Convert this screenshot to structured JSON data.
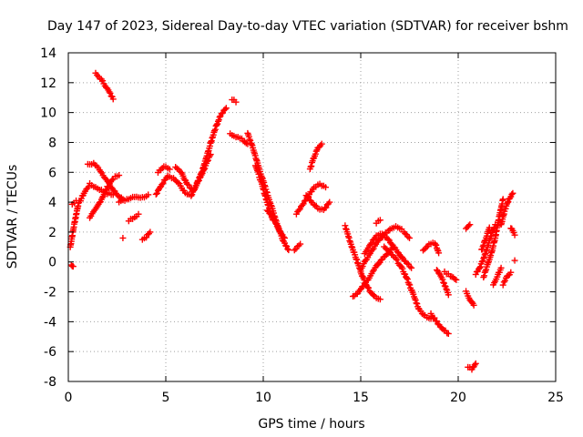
{
  "chart_data": {
    "type": "scatter",
    "title": "Day 147 of 2023, Sidereal Day-to-day VTEC variation (SDTVAR) for receiver bshm",
    "xlabel": "GPS time / hours",
    "ylabel": "SDTVAR / TECUs",
    "xlim": [
      0,
      25
    ],
    "ylim": [
      -8,
      14
    ],
    "xticks": [
      "0",
      "5",
      "10",
      "15",
      "20",
      "25"
    ],
    "yticks": [
      "-8",
      "-6",
      "-4",
      "-2",
      "0",
      "2",
      "4",
      "6",
      "8",
      "10",
      "12",
      "14"
    ],
    "grid": true,
    "marker": "+",
    "color": "#ff0000",
    "series": [
      {
        "name": "SDTVAR",
        "segments": [
          {
            "x": [
              0.1,
              0.3,
              0.5,
              0.8,
              1.1,
              1.4,
              1.7,
              2.0,
              2.3
            ],
            "y": [
              1.0,
              2.5,
              3.8,
              4.6,
              5.2,
              5.0,
              4.8,
              4.6,
              4.5
            ]
          },
          {
            "x": [
              1.0,
              1.3,
              1.6,
              1.9,
              2.2,
              2.5,
              2.8
            ],
            "y": [
              6.5,
              6.6,
              6.2,
              5.6,
              5.0,
              4.5,
              4.2
            ]
          },
          {
            "x": [
              1.1,
              1.4,
              1.7,
              2.0,
              2.3,
              2.6
            ],
            "y": [
              3.0,
              3.5,
              4.2,
              5.0,
              5.6,
              5.8
            ]
          },
          {
            "x": [
              1.4,
              1.7,
              2.0,
              2.3
            ],
            "y": [
              12.6,
              12.2,
              11.6,
              10.9
            ]
          },
          {
            "x": [
              0.2,
              0.4
            ],
            "y": [
              3.9,
              4.1
            ]
          },
          {
            "x": [
              0.15,
              0.25
            ],
            "y": [
              -0.15,
              -0.3
            ]
          },
          {
            "x": [
              2.6,
              3.0,
              3.4,
              3.8,
              4.1
            ],
            "y": [
              4.0,
              4.2,
              4.4,
              4.3,
              4.5
            ]
          },
          {
            "x": [
              3.1,
              3.4,
              3.6
            ],
            "y": [
              2.8,
              3.0,
              3.2
            ]
          },
          {
            "x": [
              2.8
            ],
            "y": [
              1.6
            ]
          },
          {
            "x": [
              3.8,
              4.0,
              4.2
            ],
            "y": [
              1.5,
              1.7,
              2.0
            ]
          },
          {
            "x": [
              4.5,
              4.8,
              5.1,
              5.4,
              5.7,
              6.0,
              6.3,
              6.6,
              6.9,
              7.2,
              7.5,
              7.8,
              8.1
            ],
            "y": [
              4.5,
              5.2,
              5.8,
              5.6,
              5.2,
              4.6,
              4.4,
              5.2,
              6.2,
              7.5,
              8.8,
              9.8,
              10.3
            ]
          },
          {
            "x": [
              4.6,
              4.9,
              5.2
            ],
            "y": [
              6.0,
              6.4,
              6.2
            ]
          },
          {
            "x": [
              5.5,
              5.8,
              6.1,
              6.4,
              6.7,
              7.0,
              7.3
            ],
            "y": [
              6.4,
              6.0,
              5.2,
              4.8,
              5.5,
              6.3,
              7.2
            ]
          },
          {
            "x": [
              8.3,
              8.6,
              8.9,
              9.2
            ],
            "y": [
              8.6,
              8.4,
              8.2,
              7.9
            ]
          },
          {
            "x": [
              8.4,
              8.6
            ],
            "y": [
              10.9,
              10.7
            ]
          },
          {
            "x": [
              9.2,
              9.5,
              9.8,
              10.1,
              10.4,
              10.7,
              11.0,
              11.3
            ],
            "y": [
              8.6,
              7.5,
              6.2,
              5.0,
              3.8,
              2.6,
              1.5,
              0.8
            ]
          },
          {
            "x": [
              9.6,
              9.9,
              10.2,
              10.5
            ],
            "y": [
              6.5,
              5.3,
              4.0,
              2.8
            ]
          },
          {
            "x": [
              10.2,
              10.5,
              10.8,
              11.1
            ],
            "y": [
              3.5,
              3.0,
              2.2,
              1.6
            ]
          },
          {
            "x": [
              11.6,
              11.9
            ],
            "y": [
              0.8,
              1.2
            ]
          },
          {
            "x": [
              11.7,
              12.0,
              12.3,
              12.6,
              12.9,
              13.2
            ],
            "y": [
              3.2,
              3.8,
              4.4,
              5.0,
              5.2,
              5.0
            ]
          },
          {
            "x": [
              12.2,
              12.5,
              12.8,
              13.1,
              13.4
            ],
            "y": [
              4.5,
              4.0,
              3.6,
              3.5,
              4.0
            ]
          },
          {
            "x": [
              12.4,
              12.6,
              12.8,
              13.0
            ],
            "y": [
              6.2,
              7.0,
              7.6,
              7.9
            ]
          },
          {
            "x": [
              14.2,
              14.5,
              14.8,
              15.1,
              15.4,
              15.7,
              16.0
            ],
            "y": [
              2.4,
              1.2,
              0.1,
              -1.0,
              -1.8,
              -2.3,
              -2.5
            ]
          },
          {
            "x": [
              14.6,
              14.9,
              15.2,
              15.5,
              15.8,
              16.1,
              16.4,
              16.7
            ],
            "y": [
              -2.3,
              -2.0,
              -1.5,
              -0.9,
              -0.3,
              0.2,
              0.6,
              1.0
            ]
          },
          {
            "x": [
              15.0,
              15.3,
              15.6,
              15.9,
              16.2,
              16.5,
              16.8,
              17.1
            ],
            "y": [
              -0.5,
              0.2,
              0.8,
              1.4,
              1.8,
              2.2,
              2.4,
              2.2
            ]
          },
          {
            "x": [
              15.2,
              15.5,
              15.8,
              16.1,
              16.4,
              16.7,
              17.0,
              17.3,
              17.6
            ],
            "y": [
              0.6,
              1.2,
              1.8,
              1.9,
              1.5,
              1.0,
              0.5,
              0.0,
              -0.4
            ]
          },
          {
            "x": [
              16.2,
              16.5,
              16.8,
              17.1,
              17.4,
              17.7,
              18.0,
              18.3,
              18.6
            ],
            "y": [
              1.0,
              0.6,
              0.2,
              -0.4,
              -1.2,
              -2.2,
              -3.2,
              -3.6,
              -3.8
            ]
          },
          {
            "x": [
              15.8,
              16.0
            ],
            "y": [
              2.6,
              2.8
            ]
          },
          {
            "x": [
              17.2,
              17.5
            ],
            "y": [
              2.0,
              1.6
            ]
          },
          {
            "x": [
              18.2,
              18.5,
              18.8,
              19.0
            ],
            "y": [
              0.8,
              1.2,
              1.3,
              0.6
            ]
          },
          {
            "x": [
              18.6,
              18.9,
              19.2,
              19.5
            ],
            "y": [
              -3.5,
              -4.0,
              -4.5,
              -4.8
            ]
          },
          {
            "x": [
              18.9,
              19.2,
              19.5
            ],
            "y": [
              -0.5,
              -1.2,
              -2.2
            ]
          },
          {
            "x": [
              19.3,
              19.6,
              19.9
            ],
            "y": [
              -0.7,
              -0.9,
              -1.2
            ]
          },
          {
            "x": [
              20.4,
              20.6,
              20.8
            ],
            "y": [
              -2.0,
              -2.5,
              -2.9
            ]
          },
          {
            "x": [
              20.4,
              20.6
            ],
            "y": [
              2.2,
              2.5
            ]
          },
          {
            "x": [
              20.5,
              20.7,
              20.9
            ],
            "y": [
              -7.0,
              -7.2,
              -6.8
            ]
          },
          {
            "x": [
              20.9,
              21.1,
              21.3,
              21.5,
              21.7,
              21.9
            ],
            "y": [
              -0.8,
              -0.4,
              0.2,
              1.0,
              1.8,
              2.5
            ]
          },
          {
            "x": [
              21.2,
              21.4,
              21.6
            ],
            "y": [
              0.8,
              1.5,
              2.3
            ]
          },
          {
            "x": [
              21.3,
              21.5,
              21.7,
              21.9,
              22.1,
              22.3
            ],
            "y": [
              -1.0,
              -0.2,
              0.6,
              1.6,
              3.0,
              4.2
            ]
          },
          {
            "x": [
              21.8,
              22.0,
              22.2
            ],
            "y": [
              -1.5,
              -1.0,
              -0.4
            ]
          },
          {
            "x": [
              22.2,
              22.4,
              22.6,
              22.8
            ],
            "y": [
              2.5,
              3.5,
              4.2,
              4.6
            ]
          },
          {
            "x": [
              22.3,
              22.5,
              22.7
            ],
            "y": [
              -1.5,
              -1.0,
              -0.7
            ]
          },
          {
            "x": [
              22.7,
              22.9
            ],
            "y": [
              2.3,
              1.8
            ]
          },
          {
            "x": [
              22.9
            ],
            "y": [
              0.1
            ]
          }
        ]
      }
    ]
  }
}
